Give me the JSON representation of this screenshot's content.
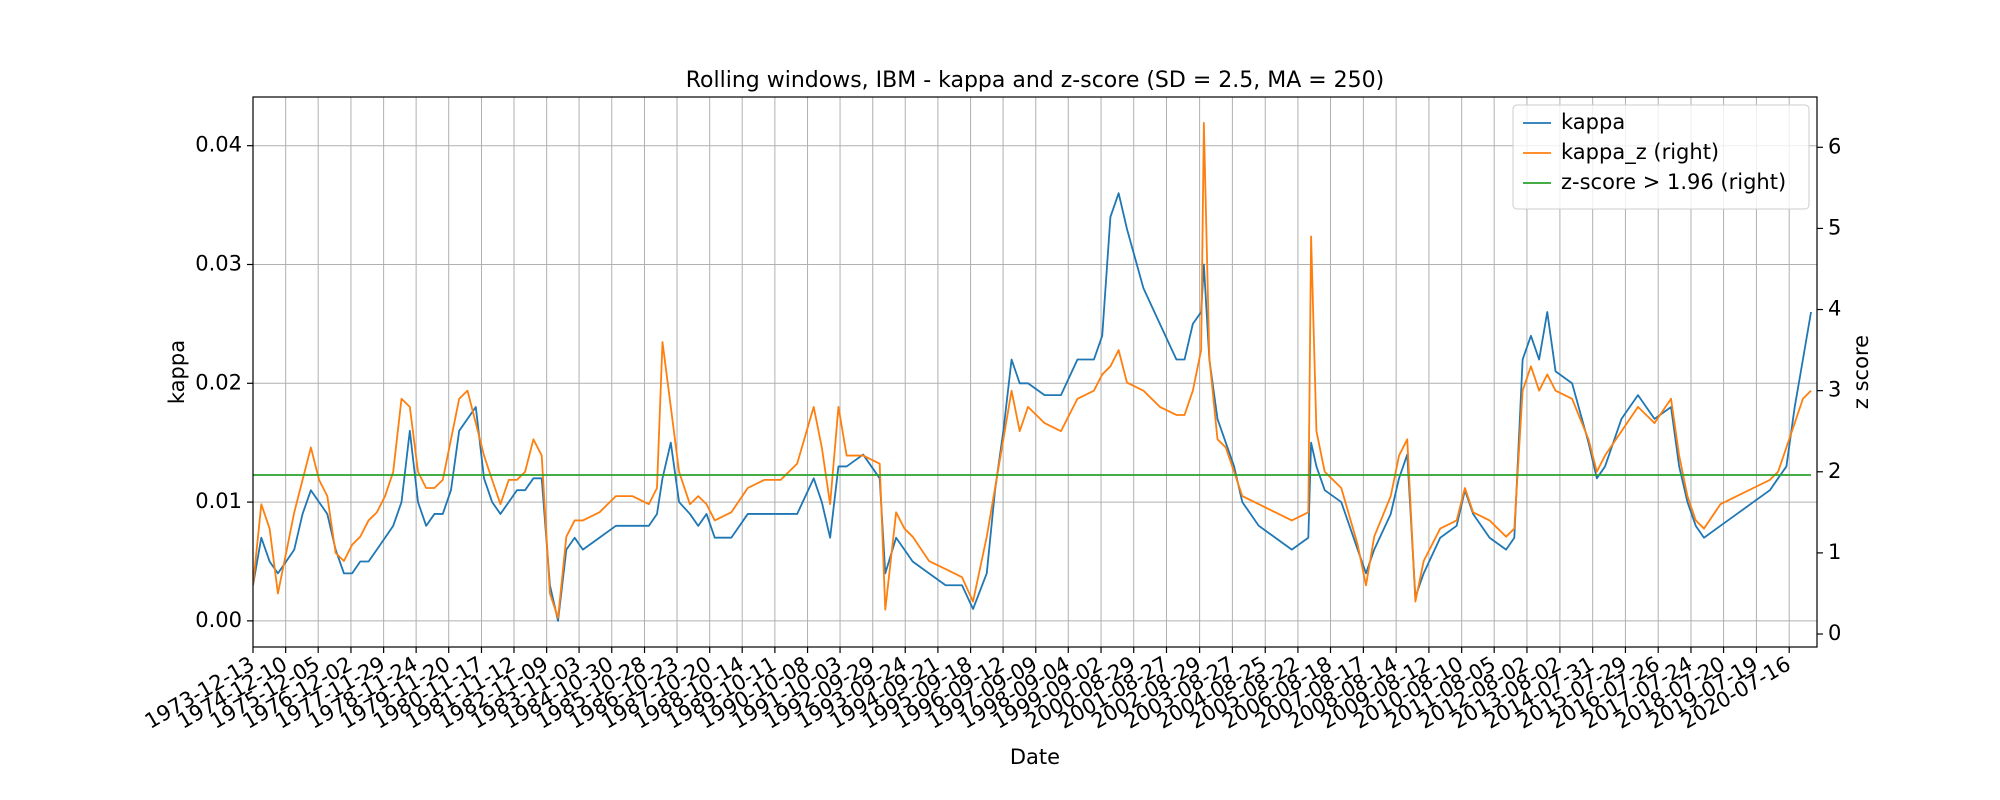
{
  "chart_data": {
    "type": "line",
    "title": "Rolling windows, IBM - kappa and z-score (SD = 2.5, MA = 250)",
    "x_label": "Date",
    "y_label": "kappa",
    "y2_label": "z score",
    "grid": true,
    "legend": "upper right",
    "x": [
      "1973-12-13",
      "1974-03-15",
      "1974-06-15",
      "1974-09-15",
      "1974-12-15",
      "1975-03-15",
      "1975-06-15",
      "1975-09-15",
      "1975-12-15",
      "1976-03-15",
      "1976-06-15",
      "1976-09-15",
      "1976-12-15",
      "1977-03-15",
      "1977-06-15",
      "1977-09-15",
      "1977-12-15",
      "1978-03-15",
      "1978-06-15",
      "1978-09-15",
      "1978-12-15",
      "1979-03-15",
      "1979-06-15",
      "1979-09-15",
      "1979-12-15",
      "1980-03-15",
      "1980-06-15",
      "1980-09-15",
      "1980-12-15",
      "1981-03-15",
      "1981-06-15",
      "1981-09-15",
      "1981-12-15",
      "1982-03-15",
      "1982-06-15",
      "1982-09-15",
      "1982-12-15",
      "1983-03-15",
      "1983-06-15",
      "1983-09-15",
      "1983-12-15",
      "1984-06-15",
      "1984-12-15",
      "1985-06-15",
      "1985-12-15",
      "1986-03-15",
      "1986-05-15",
      "1986-08-15",
      "1986-11-15",
      "1987-03-15",
      "1987-06-15",
      "1987-09-15",
      "1987-12-15",
      "1988-06-15",
      "1988-12-15",
      "1989-06-15",
      "1989-12-15",
      "1990-06-15",
      "1990-12-15",
      "1991-03-15",
      "1991-06-15",
      "1991-09-15",
      "1991-12-15",
      "1992-06-15",
      "1992-12-15",
      "1993-02-15",
      "1993-06-15",
      "1993-09-15",
      "1993-12-15",
      "1994-06-15",
      "1994-12-15",
      "1995-06-15",
      "1995-10-15",
      "1996-03-15",
      "1996-06-15",
      "1996-09-15",
      "1996-12-15",
      "1997-03-15",
      "1997-06-15",
      "1997-12-15",
      "1998-06-15",
      "1998-12-15",
      "1999-06-15",
      "1999-09-15",
      "1999-12-15",
      "2000-03-15",
      "2000-06-15",
      "2000-12-15",
      "2001-06-15",
      "2001-12-15",
      "2002-03-15",
      "2002-06-15",
      "2002-09-15",
      "2002-10-15",
      "2002-12-15",
      "2003-03-15",
      "2003-06-15",
      "2003-09-15",
      "2003-12-15",
      "2004-06-15",
      "2004-12-15",
      "2005-06-15",
      "2005-12-15",
      "2006-01-15",
      "2006-03-15",
      "2006-06-15",
      "2006-12-15",
      "2007-06-15",
      "2007-09-15",
      "2007-12-15",
      "2008-06-15",
      "2008-09-15",
      "2008-12-15",
      "2009-03-15",
      "2009-06-15",
      "2009-12-15",
      "2010-06-15",
      "2010-09-15",
      "2010-12-15",
      "2011-06-15",
      "2011-12-15",
      "2012-03-15",
      "2012-06-15",
      "2012-09-15",
      "2012-12-15",
      "2013-03-15",
      "2013-06-15",
      "2013-12-15",
      "2014-06-15",
      "2014-09-15",
      "2014-12-15",
      "2015-06-15",
      "2015-12-15",
      "2016-06-15",
      "2016-12-15",
      "2017-03-15",
      "2017-06-15",
      "2017-09-15",
      "2017-12-15",
      "2018-06-15",
      "2018-12-15",
      "2019-06-15",
      "2019-12-15",
      "2020-03-15",
      "2020-06-15",
      "2020-09-15",
      "2020-12-15",
      "2021-03-15"
    ],
    "series": [
      {
        "name": "kappa",
        "color": "#1f77b4",
        "values": [
          0.003,
          0.007,
          0.005,
          0.004,
          0.005,
          0.006,
          0.009,
          0.011,
          0.01,
          0.009,
          0.006,
          0.004,
          0.004,
          0.005,
          0.005,
          0.006,
          0.007,
          0.008,
          0.01,
          0.016,
          0.01,
          0.008,
          0.009,
          0.009,
          0.011,
          0.016,
          0.017,
          0.018,
          0.012,
          0.01,
          0.009,
          0.01,
          0.011,
          0.011,
          0.012,
          0.012,
          0.003,
          0.0,
          0.006,
          0.007,
          0.006,
          0.007,
          0.008,
          0.008,
          0.008,
          0.009,
          0.012,
          0.015,
          0.01,
          0.009,
          0.008,
          0.009,
          0.007,
          0.007,
          0.009,
          0.009,
          0.009,
          0.009,
          0.012,
          0.01,
          0.007,
          0.013,
          0.013,
          0.014,
          0.012,
          0.004,
          0.007,
          0.006,
          0.005,
          0.004,
          0.003,
          0.003,
          0.001,
          0.004,
          0.011,
          0.016,
          0.022,
          0.02,
          0.02,
          0.019,
          0.019,
          0.022,
          0.022,
          0.024,
          0.034,
          0.036,
          0.033,
          0.028,
          0.025,
          0.022,
          0.022,
          0.025,
          0.026,
          0.03,
          0.022,
          0.017,
          0.015,
          0.013,
          0.01,
          0.008,
          0.007,
          0.006,
          0.007,
          0.015,
          0.013,
          0.011,
          0.01,
          0.006,
          0.004,
          0.006,
          0.009,
          0.012,
          0.014,
          0.002,
          0.004,
          0.007,
          0.008,
          0.011,
          0.009,
          0.007,
          0.006,
          0.007,
          0.022,
          0.024,
          0.022,
          0.026,
          0.021,
          0.02,
          0.015,
          0.012,
          0.013,
          0.017,
          0.019,
          0.017,
          0.018,
          0.013,
          0.01,
          0.008,
          0.007,
          0.008,
          0.009,
          0.01,
          0.011,
          0.012,
          0.013,
          0.018,
          0.022,
          0.026
        ]
      },
      {
        "name": "kappa_z (right)",
        "color": "#ff7f0e",
        "axis": "y2",
        "values": [
          0.6,
          1.6,
          1.3,
          0.5,
          1.0,
          1.5,
          1.9,
          2.3,
          1.9,
          1.7,
          1.0,
          0.9,
          1.1,
          1.2,
          1.4,
          1.5,
          1.7,
          2.0,
          2.9,
          2.8,
          2.0,
          1.8,
          1.8,
          1.9,
          2.4,
          2.9,
          3.0,
          2.6,
          2.2,
          1.9,
          1.6,
          1.9,
          1.9,
          2.0,
          2.4,
          2.2,
          0.5,
          0.2,
          1.2,
          1.4,
          1.4,
          1.5,
          1.7,
          1.7,
          1.6,
          1.8,
          3.6,
          2.8,
          2.0,
          1.6,
          1.7,
          1.6,
          1.4,
          1.5,
          1.8,
          1.9,
          1.9,
          2.1,
          2.8,
          2.3,
          1.6,
          2.8,
          2.2,
          2.2,
          2.1,
          0.3,
          1.5,
          1.3,
          1.2,
          0.9,
          0.8,
          0.7,
          0.4,
          1.2,
          1.8,
          2.4,
          3.0,
          2.5,
          2.8,
          2.6,
          2.5,
          2.9,
          3.0,
          3.2,
          3.3,
          3.5,
          3.1,
          3.0,
          2.8,
          2.7,
          2.7,
          3.0,
          3.5,
          6.3,
          3.4,
          2.4,
          2.3,
          2.0,
          1.7,
          1.6,
          1.5,
          1.4,
          1.5,
          4.9,
          2.5,
          2.0,
          1.8,
          1.1,
          0.6,
          1.2,
          1.7,
          2.2,
          2.4,
          0.4,
          0.9,
          1.3,
          1.4,
          1.8,
          1.5,
          1.4,
          1.2,
          1.3,
          3.0,
          3.3,
          3.0,
          3.2,
          3.0,
          2.9,
          2.4,
          2.0,
          2.2,
          2.5,
          2.8,
          2.6,
          2.9,
          2.2,
          1.7,
          1.4,
          1.3,
          1.6,
          1.7,
          1.8,
          1.9,
          2.0,
          2.3,
          2.6,
          2.9,
          3.0
        ]
      },
      {
        "name": "z-score > 1.96 (right)",
        "color": "#2ca02c",
        "axis": "y2",
        "x": [
          "1973-12-13",
          "2021-03-15"
        ],
        "values": [
          1.96,
          1.96
        ]
      }
    ],
    "xlim": [
      "1973-12-13",
      "2021-05-20"
    ],
    "xticks": [
      "1973-12-13",
      "1974-12-10",
      "1975-12-05",
      "1976-12-02",
      "1977-11-29",
      "1978-11-24",
      "1979-11-20",
      "1980-11-17",
      "1981-11-12",
      "1982-11-09",
      "1983-11-03",
      "1984-10-30",
      "1985-10-28",
      "1986-10-23",
      "1987-10-20",
      "1988-10-14",
      "1989-10-11",
      "1990-10-08",
      "1991-10-03",
      "1992-09-29",
      "1993-09-24",
      "1994-09-21",
      "1995-09-18",
      "1996-09-12",
      "1997-09-09",
      "1998-09-04",
      "1999-09-02",
      "2000-08-29",
      "2001-08-27",
      "2002-08-29",
      "2003-08-27",
      "2004-08-25",
      "2005-08-22",
      "2006-08-18",
      "2007-08-17",
      "2008-08-14",
      "2009-08-12",
      "2010-08-10",
      "2011-08-05",
      "2012-08-02",
      "2013-08-02",
      "2014-07-31",
      "2015-07-29",
      "2016-07-26",
      "2017-07-24",
      "2018-07-20",
      "2019-07-19",
      "2020-07-16"
    ],
    "ylim": [
      -0.0022,
      0.0441
    ],
    "yticks": [
      {
        "value": 0,
        "label": "0.00"
      },
      0.01,
      0.02,
      0.03,
      0.04
    ],
    "y2lim": [
      -0.16,
      6.62
    ],
    "y2ticks": [
      0,
      1,
      2,
      3,
      4,
      5,
      6
    ]
  }
}
